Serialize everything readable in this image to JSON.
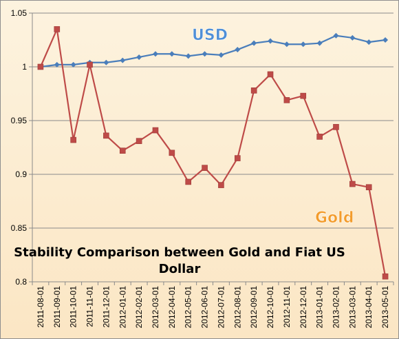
{
  "chart_data": {
    "type": "line",
    "title_lines": [
      "Stability Comparison between Gold and Fiat US",
      "Dollar"
    ],
    "x": [
      "2011-08-01",
      "2011-09-01",
      "2011-10-01",
      "2011-11-01",
      "2011-12-01",
      "2012-01-01",
      "2012-02-01",
      "2012-03-01",
      "2012-04-01",
      "2012-05-01",
      "2012-06-01",
      "2012-07-01",
      "2012-08-01",
      "2012-09-01",
      "2012-10-01",
      "2012-11-01",
      "2012-12-01",
      "2013-01-01",
      "2013-02-01",
      "2013-03-01",
      "2013-04-01",
      "2013-05-01"
    ],
    "yticks": [
      "0.8",
      "0.85",
      "0.9",
      "0.95",
      "1",
      "1.05"
    ],
    "ylim": [
      0.8,
      1.05
    ],
    "grid": "horizontal",
    "series": [
      {
        "name": "USD",
        "color": "#4a7ebb",
        "marker": "diamond",
        "values": [
          1.0,
          1.002,
          1.002,
          1.004,
          1.004,
          1.006,
          1.009,
          1.012,
          1.012,
          1.01,
          1.012,
          1.011,
          1.016,
          1.022,
          1.024,
          1.021,
          1.021,
          1.022,
          1.029,
          1.027,
          1.023,
          1.025
        ]
      },
      {
        "name": "Gold",
        "color": "#be4b48",
        "marker": "square",
        "values": [
          1.0,
          1.035,
          0.932,
          1.002,
          0.936,
          0.922,
          0.931,
          0.941,
          0.92,
          0.893,
          0.906,
          0.89,
          0.915,
          0.978,
          0.993,
          0.969,
          0.973,
          0.935,
          0.944,
          0.891,
          0.888,
          0.805
        ]
      }
    ]
  }
}
